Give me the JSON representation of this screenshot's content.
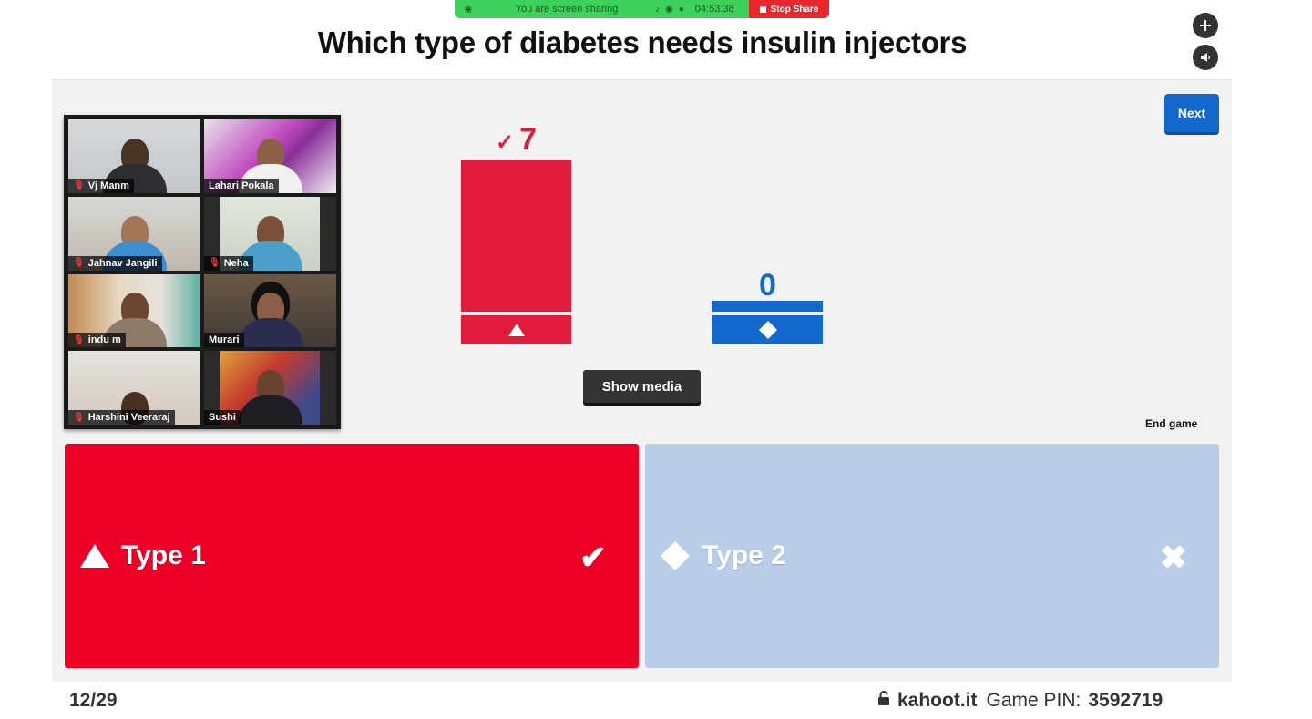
{
  "share_bar": {
    "status_text": "You are screen sharing",
    "timer": "04:53:38",
    "stop_label": "Stop Share"
  },
  "question": "Which type of diabetes needs insulin injectors",
  "controls": {
    "next_label": "Next",
    "show_media_label": "Show media",
    "end_game_label": "End game"
  },
  "participants": [
    {
      "name": "Vj Manm",
      "muted": true
    },
    {
      "name": "Lahari Pokala",
      "muted": false
    },
    {
      "name": "Jahnav Jangili",
      "muted": true
    },
    {
      "name": "Neha",
      "muted": true
    },
    {
      "name": "indu m",
      "muted": true
    },
    {
      "name": "Murari",
      "muted": false,
      "active": true
    },
    {
      "name": "Harshini Veeraraj",
      "muted": true
    },
    {
      "name": "Sushi",
      "muted": false
    }
  ],
  "results": {
    "correct_mark": "✓",
    "bars": [
      {
        "shape": "triangle",
        "count": "7",
        "color": "#e21b3c",
        "correct": true
      },
      {
        "shape": "diamond",
        "count": "0",
        "color": "#1368ce",
        "correct": false
      }
    ]
  },
  "answers": [
    {
      "shape": "triangle",
      "label": "Type 1",
      "color": "#ee0026",
      "correct": true,
      "mark": "✔"
    },
    {
      "shape": "diamond",
      "label": "Type 2",
      "color": "#b7cde8",
      "correct": false,
      "mark": "✖"
    }
  ],
  "footer": {
    "progress": "12/29",
    "site": "kahoot.it",
    "pin_label": "Game PIN:",
    "pin": "3592719"
  },
  "icons": {
    "expand": "plus-icon",
    "sound": "speaker-icon",
    "lock": "lock-icon"
  }
}
